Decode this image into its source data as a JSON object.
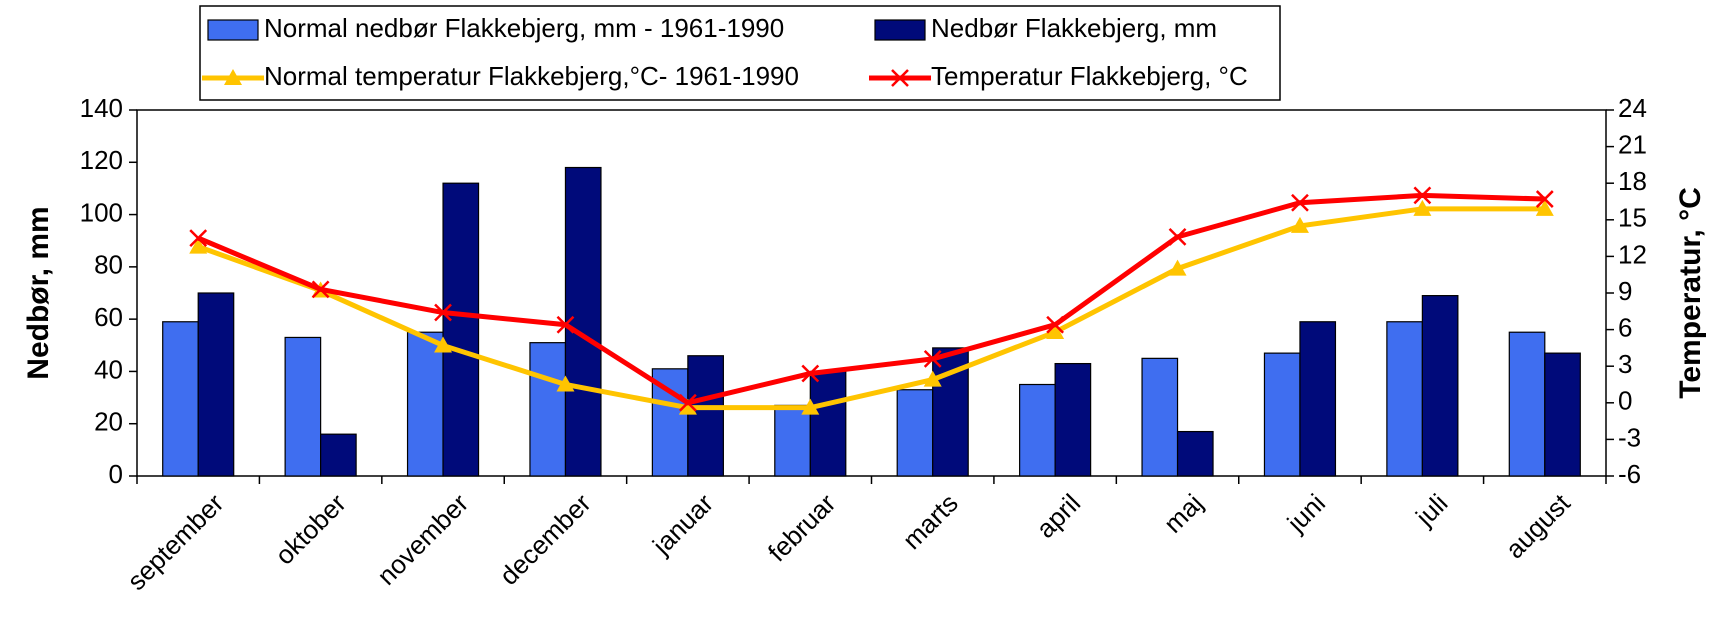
{
  "chart_data": {
    "type": "bar-line",
    "categories": [
      "september",
      "oktober",
      "november",
      "december",
      "januar",
      "februar",
      "marts",
      "april",
      "maj",
      "juni",
      "juli",
      "august"
    ],
    "series": [
      {
        "name": "Normal nedbør Flakkebjerg, mm - 1961-1990",
        "type": "bar",
        "color": "#3f6ef0",
        "values": [
          59,
          53,
          55,
          51,
          41,
          27,
          33,
          35,
          45,
          47,
          59,
          55
        ]
      },
      {
        "name": "Nedbør Flakkebjerg, mm",
        "type": "bar",
        "color": "#000a7a",
        "values": [
          70,
          16,
          112,
          118,
          46,
          40,
          49,
          43,
          17,
          59,
          69,
          47
        ]
      },
      {
        "name": "Normal temperatur Flakkebjerg,°C- 1961-1990",
        "type": "line",
        "axis": "y2",
        "color": "#ffc400",
        "marker": "triangle",
        "values": [
          12.8,
          9.2,
          4.7,
          1.5,
          -0.4,
          -0.4,
          1.9,
          5.8,
          11,
          14.5,
          15.9,
          15.9
        ]
      },
      {
        "name": "Temperatur Flakkebjerg, °C",
        "type": "line",
        "axis": "y2",
        "color": "#ff0000",
        "marker": "x",
        "values": [
          13.5,
          9.3,
          7.4,
          6.4,
          0,
          2.4,
          3.6,
          6.4,
          13.6,
          16.4,
          17,
          16.7
        ]
      }
    ],
    "ylabel": "Nedbør, mm",
    "y2label": "Temperatur, °C",
    "ylim": [
      0,
      140
    ],
    "yticks": [
      0,
      20,
      40,
      60,
      80,
      100,
      120,
      140
    ],
    "y2lim": [
      -6,
      24
    ],
    "y2ticks": [
      -6,
      -3,
      0,
      3,
      6,
      9,
      12,
      15,
      18,
      21,
      24
    ]
  }
}
